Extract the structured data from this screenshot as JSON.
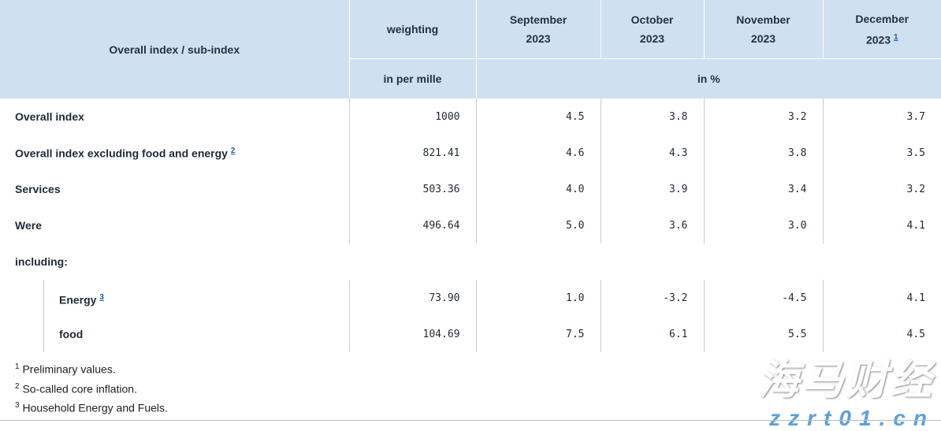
{
  "header": {
    "col0": "Overall index / sub-index",
    "weighting": "weighting",
    "weighting_unit": "in per mille",
    "months": [
      {
        "m": "September",
        "y": "2023"
      },
      {
        "m": "October",
        "y": "2023"
      },
      {
        "m": "November",
        "y": "2023"
      },
      {
        "m": "December",
        "y": "2023",
        "note": "1"
      }
    ],
    "value_unit": "in %"
  },
  "rows": [
    {
      "label": "Overall index",
      "weight": "1000",
      "values": [
        "4.5",
        "3.8",
        "3.2",
        "3.7"
      ]
    },
    {
      "label": "Overall index excluding food and energy",
      "note": "2",
      "weight": "821.41",
      "values": [
        "4.6",
        "4.3",
        "3.8",
        "3.5"
      ]
    },
    {
      "label": "Services",
      "weight": "503.36",
      "values": [
        "4.0",
        "3.9",
        "3.4",
        "3.2"
      ]
    },
    {
      "label": "Were",
      "weight": "496.64",
      "values": [
        "5.0",
        "3.6",
        "3.0",
        "4.1"
      ]
    },
    {
      "label": "including:"
    },
    {
      "label": "Energy",
      "note": "3",
      "weight": "73.90",
      "values": [
        "1.0",
        "-3.2",
        "-4.5",
        "4.1"
      ]
    },
    {
      "label": "food",
      "weight": "104.69",
      "values": [
        "7.5",
        "6.1",
        "5.5",
        "4.5"
      ]
    }
  ],
  "footnotes": [
    {
      "n": "1",
      "text": "Preliminary values."
    },
    {
      "n": "2",
      "text": "So-called core inflation."
    },
    {
      "n": "3",
      "text": "Household Energy and Fuels."
    }
  ],
  "watermark": {
    "cn": "海马财经",
    "url": "zzrt01.cn"
  }
}
